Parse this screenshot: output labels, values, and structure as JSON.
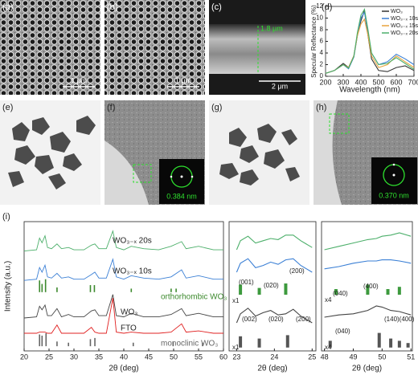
{
  "panels": {
    "a": "(a)",
    "b": "(b)",
    "c": "(c)",
    "d": "(d)",
    "e": "(e)",
    "f": "(f)",
    "g": "(g)",
    "h": "(h)",
    "i": "(i)"
  },
  "images": {
    "a_scale": "1 μm",
    "b_scale": "1 μm",
    "c_thickness": "1.8 μm",
    "c_scale": "2 μm",
    "f_spacing": "0.384 nm",
    "h_spacing": "0.370 nm"
  },
  "chart_data": [
    {
      "type": "line",
      "xlabel": "Wavelength (nm)",
      "ylabel": "Specular Reflectance (%)",
      "x": [
        200,
        250,
        300,
        330,
        360,
        380,
        400,
        420,
        440,
        460,
        500,
        550,
        600,
        650,
        700
      ],
      "xlim": [
        200,
        700
      ],
      "xticks": [
        200,
        300,
        400,
        500,
        600,
        700
      ],
      "ylim": [
        0,
        12
      ],
      "yticks": [
        0,
        2,
        4,
        6,
        8,
        10,
        12
      ],
      "legend": "upper right",
      "series": [
        {
          "name": "WO₃",
          "color": "#333333",
          "values": [
            0.5,
            1,
            2.2,
            1.5,
            3.5,
            7,
            9.5,
            11.3,
            7,
            3,
            1,
            0.8,
            1.5,
            1.8,
            1
          ]
        },
        {
          "name": "WO₃₋ₓ 10s",
          "color": "#3a7fd5",
          "values": [
            0.5,
            1,
            2,
            1.3,
            3.3,
            7,
            10,
            11,
            7.5,
            4,
            2,
            2.5,
            3.8,
            3,
            2
          ]
        },
        {
          "name": "WO₃₋ₓ 15s",
          "color": "#e8a33d",
          "values": [
            0.5,
            1,
            2,
            1.5,
            3.5,
            7,
            9,
            9.8,
            7,
            3.5,
            1.5,
            2,
            3.5,
            2.5,
            1.5
          ]
        },
        {
          "name": "WO₃₋ₓ 20s",
          "color": "#4caf6a",
          "values": [
            0.5,
            1,
            2,
            1.4,
            3.4,
            7.5,
            10.5,
            11.5,
            8,
            4,
            2,
            2.2,
            3.2,
            2.2,
            1.2
          ]
        }
      ]
    },
    {
      "type": "line",
      "xlabel": "2θ (deg)",
      "ylabel": "Intensity (a.u.)",
      "x": [
        20,
        22.5,
        23.1,
        23.6,
        24.2,
        24.7,
        25.5,
        26.6,
        27.5,
        28.9,
        30,
        32,
        33.5,
        34.2,
        35,
        36.5,
        37.8,
        38.5,
        40,
        41.5,
        44,
        47,
        49.5,
        51.6,
        52.5,
        55,
        58,
        60
      ],
      "xlim": [
        20,
        60
      ],
      "xticks": [
        20,
        25,
        30,
        35,
        40,
        45,
        50,
        55,
        60
      ],
      "ylim": [
        0,
        11
      ],
      "series": [
        {
          "name": "WO₃₋ₓ 20s",
          "color": "#4caf6a",
          "kind": "line",
          "values": [
            8.5,
            8.6,
            9.6,
            9.2,
            9.8,
            8.8,
            8.7,
            9.1,
            8.7,
            8.8,
            8.6,
            8.6,
            9.0,
            9.1,
            8.7,
            8.7,
            10.2,
            8.8,
            8.6,
            8.9,
            8.7,
            8.6,
            8.9,
            9.3,
            8.7,
            8.9,
            8.6,
            8.6
          ]
        },
        {
          "name": "WO₃₋ₓ 10s",
          "color": "#3a7fd5",
          "kind": "line",
          "values": [
            6.0,
            6.1,
            7.1,
            6.7,
            7.3,
            6.3,
            6.2,
            6.6,
            6.2,
            6.3,
            6.1,
            6.1,
            6.5,
            6.7,
            6.2,
            6.2,
            7.8,
            6.3,
            6.1,
            6.4,
            6.2,
            6.1,
            6.3,
            6.9,
            6.2,
            6.4,
            6.1,
            6.1
          ]
        },
        {
          "name": "orthorhombic WO₃",
          "color": "#3d8a2e",
          "kind": "stick",
          "base": 5,
          "x": [
            23.1,
            23.6,
            24.3,
            26.6,
            33.3,
            34.1,
            41.5,
            49.5,
            50.5
          ],
          "values": [
            6.0,
            5.7,
            6.1,
            5.4,
            5.6,
            5.6,
            5.3,
            5.3,
            5.3
          ]
        },
        {
          "name": "WO₃",
          "color": "#444444",
          "kind": "line",
          "values": [
            2.8,
            2.9,
            3.8,
            3.5,
            3.9,
            3.0,
            3.0,
            3.6,
            2.9,
            3.1,
            2.9,
            2.9,
            3.4,
            3.5,
            3.0,
            3.0,
            4.8,
            3.0,
            2.9,
            3.2,
            2.9,
            2.9,
            3.1,
            3.6,
            3.0,
            3.2,
            2.9,
            2.9
          ]
        },
        {
          "name": "FTO",
          "color": "#e02020",
          "kind": "line",
          "values": [
            1.5,
            1.5,
            1.6,
            1.6,
            1.6,
            1.5,
            1.5,
            2.2,
            1.5,
            1.5,
            1.5,
            1.5,
            2.0,
            1.6,
            1.5,
            1.5,
            4.5,
            1.6,
            1.5,
            1.6,
            1.5,
            1.5,
            1.6,
            2.3,
            1.6,
            1.7,
            1.5,
            1.5
          ]
        },
        {
          "name": "monoclinic WO₃",
          "color": "#666666",
          "kind": "stick",
          "base": 0.4,
          "x": [
            23.1,
            23.6,
            24.4,
            26.6,
            28.9,
            33.3,
            34.2,
            41.9,
            49.9,
            55.8
          ],
          "values": [
            1.4,
            1.3,
            1.5,
            0.8,
            0.7,
            1.0,
            1.1,
            0.7,
            0.8,
            0.7
          ]
        }
      ]
    },
    {
      "type": "line",
      "xlabel": "2θ (deg)",
      "x": [
        23,
        23.1,
        23.3,
        23.5,
        23.7,
        23.9,
        24.1,
        24.3,
        24.5,
        24.7,
        25
      ],
      "xlim": [
        22.8,
        25.1
      ],
      "xticks": [
        23,
        24,
        25
      ],
      "ylim": [
        0,
        11.5
      ],
      "annotations": [
        "(001)",
        "(020)",
        "(200)",
        "x1",
        "(002)",
        "(020)",
        "(200)",
        "x1"
      ],
      "series": [
        {
          "color": "#4caf6a",
          "kind": "line",
          "values": [
            9.0,
            9.8,
            10.2,
            9.6,
            9.8,
            10.0,
            9.9,
            10.3,
            10.3,
            9.8,
            9.2
          ]
        },
        {
          "color": "#3a7fd5",
          "kind": "line",
          "values": [
            7.0,
            7.8,
            8.2,
            7.4,
            7.6,
            7.9,
            7.7,
            8.1,
            8.2,
            7.6,
            7.0
          ]
        },
        {
          "color": "#3d9a3e",
          "kind": "stick",
          "base": 5,
          "x": [
            23.1,
            23.6,
            24.3
          ],
          "values": [
            5.9,
            5.6,
            6.0
          ]
        },
        {
          "color": "#444444",
          "kind": "line",
          "values": [
            2.5,
            3.3,
            3.8,
            3.1,
            3.4,
            3.6,
            3.2,
            3.3,
            3.7,
            3.1,
            2.5
          ]
        },
        {
          "color": "#555555",
          "kind": "stick",
          "base": 0.3,
          "x": [
            23.1,
            23.6,
            24.35
          ],
          "values": [
            1.3,
            1.1,
            1.4
          ]
        }
      ]
    },
    {
      "type": "line",
      "xlabel": "2θ (deg)",
      "x": [
        48,
        48.5,
        49,
        49.5,
        49.8,
        50,
        50.3,
        50.6,
        51
      ],
      "xlim": [
        47.9,
        51.05
      ],
      "xticks": [
        48,
        49,
        50,
        51
      ],
      "ylim": [
        0,
        11.5
      ],
      "annotations": [
        "(040)",
        "(400)",
        "x4",
        "(040)",
        "(140)(400)",
        "x4"
      ],
      "series": [
        {
          "color": "#4caf6a",
          "kind": "line",
          "values": [
            9.0,
            9.3,
            9.6,
            9.9,
            10.0,
            10.2,
            10.3,
            10.5,
            10.2
          ]
        },
        {
          "color": "#3a7fd5",
          "kind": "line",
          "values": [
            7.3,
            7.5,
            7.8,
            8.0,
            8.0,
            8.1,
            8.1,
            8.0,
            7.8
          ]
        },
        {
          "color": "#3d9a3e",
          "kind": "stick",
          "base": 5,
          "x": [
            48.4,
            49.5,
            50.2,
            50.6
          ],
          "values": [
            5.5,
            5.9,
            5.5,
            5.7
          ]
        },
        {
          "color": "#444444",
          "kind": "line",
          "values": [
            3.0,
            3.2,
            3.3,
            3.6,
            4.0,
            3.9,
            3.6,
            3.5,
            3.2
          ]
        },
        {
          "color": "#555555",
          "kind": "stick",
          "base": 0.3,
          "x": [
            48.2,
            49.9,
            50.3,
            50.6,
            50.9
          ],
          "values": [
            0.9,
            1.6,
            1.1,
            0.9,
            0.7
          ]
        }
      ]
    }
  ]
}
